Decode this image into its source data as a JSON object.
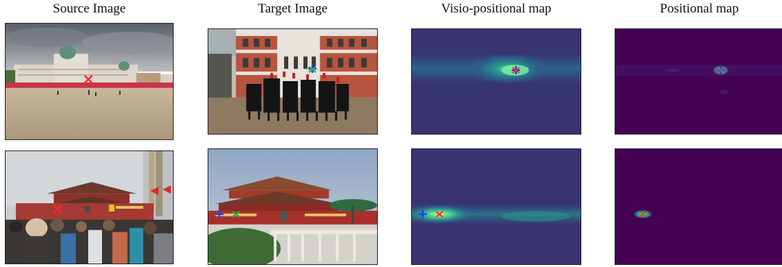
{
  "columns": [
    {
      "title": "Source Image"
    },
    {
      "title": "Target Image"
    },
    {
      "title": "Visio-positional map"
    },
    {
      "title": "Positional map"
    }
  ],
  "rows": [
    {
      "scene": "courtyard",
      "target_scene": "horseguards",
      "source_mark": "×"
    },
    {
      "scene": "tiananmen-crowd",
      "target_scene": "tiananmen-gate",
      "source_mark": "×"
    }
  ],
  "marker_colors": {
    "source": "#ff2a2a",
    "predicted": "#1f3cff",
    "ground_truth": "#2ea84a"
  },
  "map_colors": {
    "low": "#440154",
    "mid": "#31688e",
    "high": "#35b779",
    "peak": "#fde725"
  }
}
